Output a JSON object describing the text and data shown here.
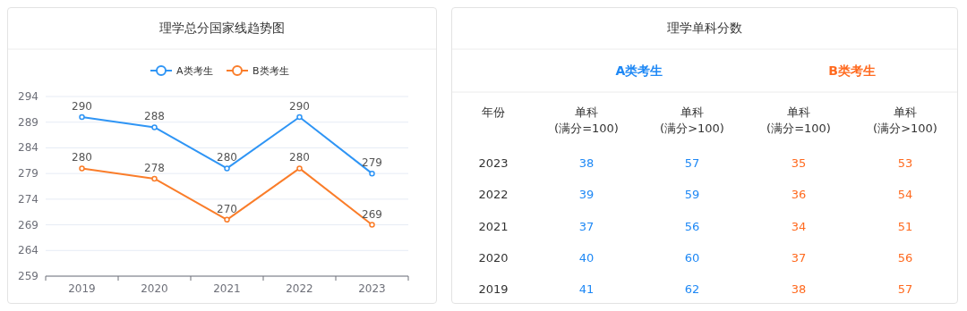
{
  "chart_data": [
    {
      "type": "line",
      "title": "理学总分国家线趋势图",
      "categories": [
        "2019",
        "2020",
        "2021",
        "2022",
        "2023"
      ],
      "series": [
        {
          "name": "A类考生",
          "color": "#2f95f5",
          "values": [
            290,
            288,
            280,
            290,
            279
          ]
        },
        {
          "name": "B类考生",
          "color": "#fa7d2a",
          "values": [
            280,
            278,
            270,
            280,
            269
          ]
        }
      ],
      "ylim": [
        259,
        294
      ],
      "yticks": [
        259,
        264,
        269,
        274,
        279,
        284,
        289,
        294
      ],
      "grid": "y",
      "legend": "top",
      "marker": "circle",
      "data_labels": true
    },
    {
      "type": "heatmap",
      "title": "理学单科分数",
      "ylabel": "年份",
      "annotations": [
        "A类考生",
        "B类考生"
      ],
      "categories": [
        "单科\n(满分=100)",
        "单科\n(满分>100)",
        "单科\n(满分=100)",
        "单科\n(满分>100)"
      ],
      "colors": [
        "#1e88f5",
        "#1e88f5",
        "#ff6a1f",
        "#ff6a1f"
      ],
      "y_categories": [
        "2023",
        "2022",
        "2021",
        "2020",
        "2019"
      ],
      "data_labels": true,
      "cells": [
        [
          38,
          57,
          35,
          53
        ],
        [
          39,
          59,
          36,
          54
        ],
        [
          37,
          56,
          34,
          51
        ],
        [
          40,
          60,
          37,
          56
        ],
        [
          41,
          62,
          38,
          57
        ]
      ]
    }
  ]
}
